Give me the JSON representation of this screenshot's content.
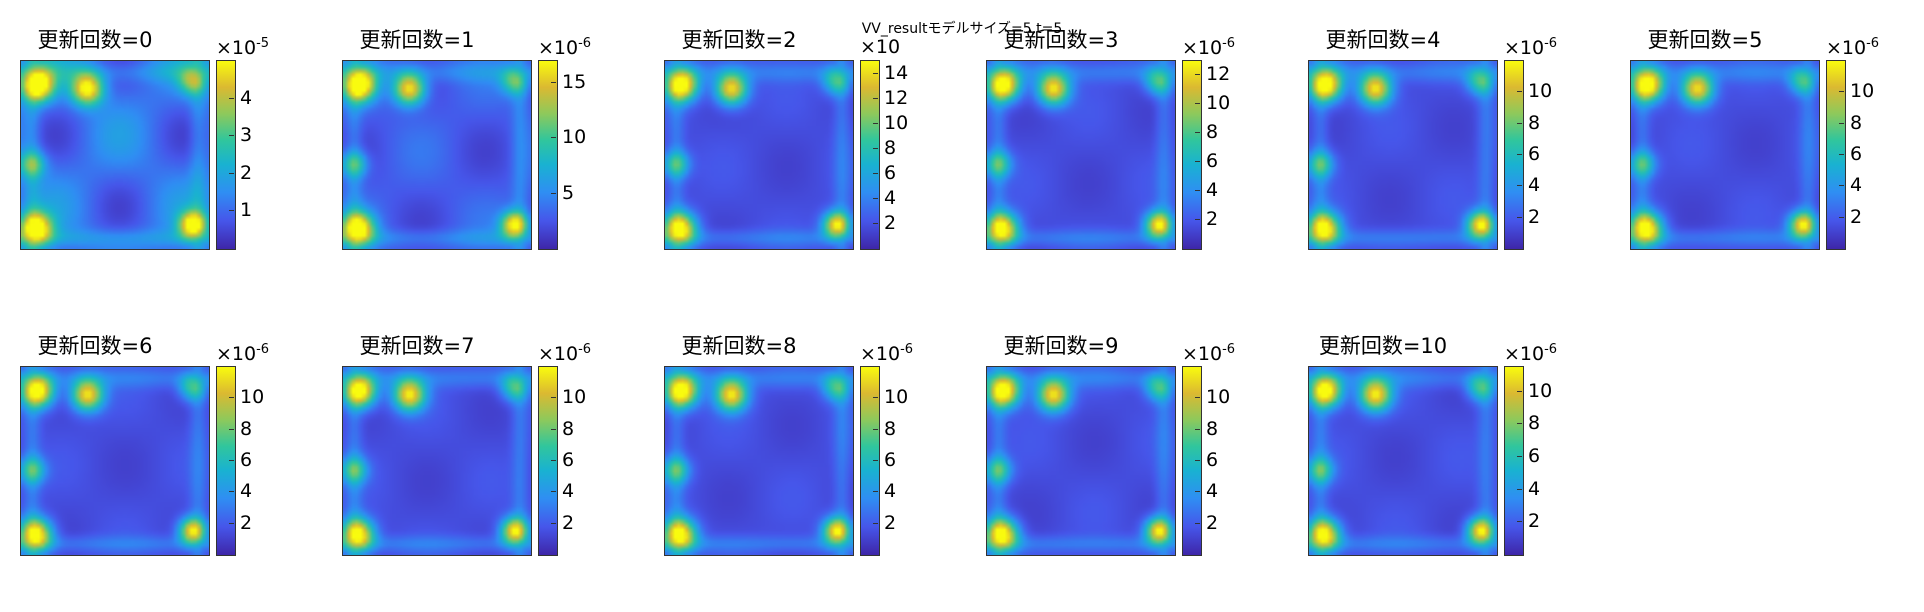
{
  "figure": {
    "suptitle": "VV_resultモデルサイズ=5,t=5"
  },
  "colors": {
    "parula": [
      "#3e26a8",
      "#4656ea",
      "#2f8ef3",
      "#19b2d1",
      "#31c69c",
      "#8ec95b",
      "#dbb931",
      "#f9fb0e"
    ]
  },
  "chart_data": [
    {
      "type": "heatmap",
      "title": "更新回数=0",
      "scale_label": "×10",
      "scale_exponent": "-5",
      "clim": [
        0,
        5
      ],
      "cbar_ticks": [
        1,
        2,
        3,
        4
      ]
    },
    {
      "type": "heatmap",
      "title": "更新回数=1",
      "scale_label": "×10",
      "scale_exponent": "-6",
      "clim": [
        0,
        17
      ],
      "cbar_ticks": [
        5,
        10,
        15
      ]
    },
    {
      "type": "heatmap",
      "title": "更新回数=2",
      "scale_label": "×10",
      "scale_exponent": "",
      "clim": [
        0,
        15
      ],
      "cbar_ticks": [
        2,
        4,
        6,
        8,
        10,
        12,
        14
      ]
    },
    {
      "type": "heatmap",
      "title": "更新回数=3",
      "scale_label": "×10",
      "scale_exponent": "-6",
      "clim": [
        0,
        13
      ],
      "cbar_ticks": [
        2,
        4,
        6,
        8,
        10,
        12
      ]
    },
    {
      "type": "heatmap",
      "title": "更新回数=4",
      "scale_label": "×10",
      "scale_exponent": "-6",
      "clim": [
        0,
        12
      ],
      "cbar_ticks": [
        2,
        4,
        6,
        8,
        10
      ]
    },
    {
      "type": "heatmap",
      "title": "更新回数=5",
      "scale_label": "×10",
      "scale_exponent": "-6",
      "clim": [
        0,
        12
      ],
      "cbar_ticks": [
        2,
        4,
        6,
        8,
        10
      ]
    },
    {
      "type": "heatmap",
      "title": "更新回数=6",
      "scale_label": "×10",
      "scale_exponent": "-6",
      "clim": [
        0,
        12
      ],
      "cbar_ticks": [
        2,
        4,
        6,
        8,
        10
      ]
    },
    {
      "type": "heatmap",
      "title": "更新回数=7",
      "scale_label": "×10",
      "scale_exponent": "-6",
      "clim": [
        0,
        12
      ],
      "cbar_ticks": [
        2,
        4,
        6,
        8,
        10
      ]
    },
    {
      "type": "heatmap",
      "title": "更新回数=8",
      "scale_label": "×10",
      "scale_exponent": "-6",
      "clim": [
        0,
        12
      ],
      "cbar_ticks": [
        2,
        4,
        6,
        8,
        10
      ]
    },
    {
      "type": "heatmap",
      "title": "更新回数=9",
      "scale_label": "×10",
      "scale_exponent": "-6",
      "clim": [
        0,
        12
      ],
      "cbar_ticks": [
        2,
        4,
        6,
        8,
        10
      ]
    },
    {
      "type": "heatmap",
      "title": "更新回数=10",
      "scale_label": "×10",
      "scale_exponent": "-6",
      "clim": [
        0,
        11.5
      ],
      "cbar_ticks": [
        2,
        4,
        6,
        8,
        10
      ]
    }
  ]
}
